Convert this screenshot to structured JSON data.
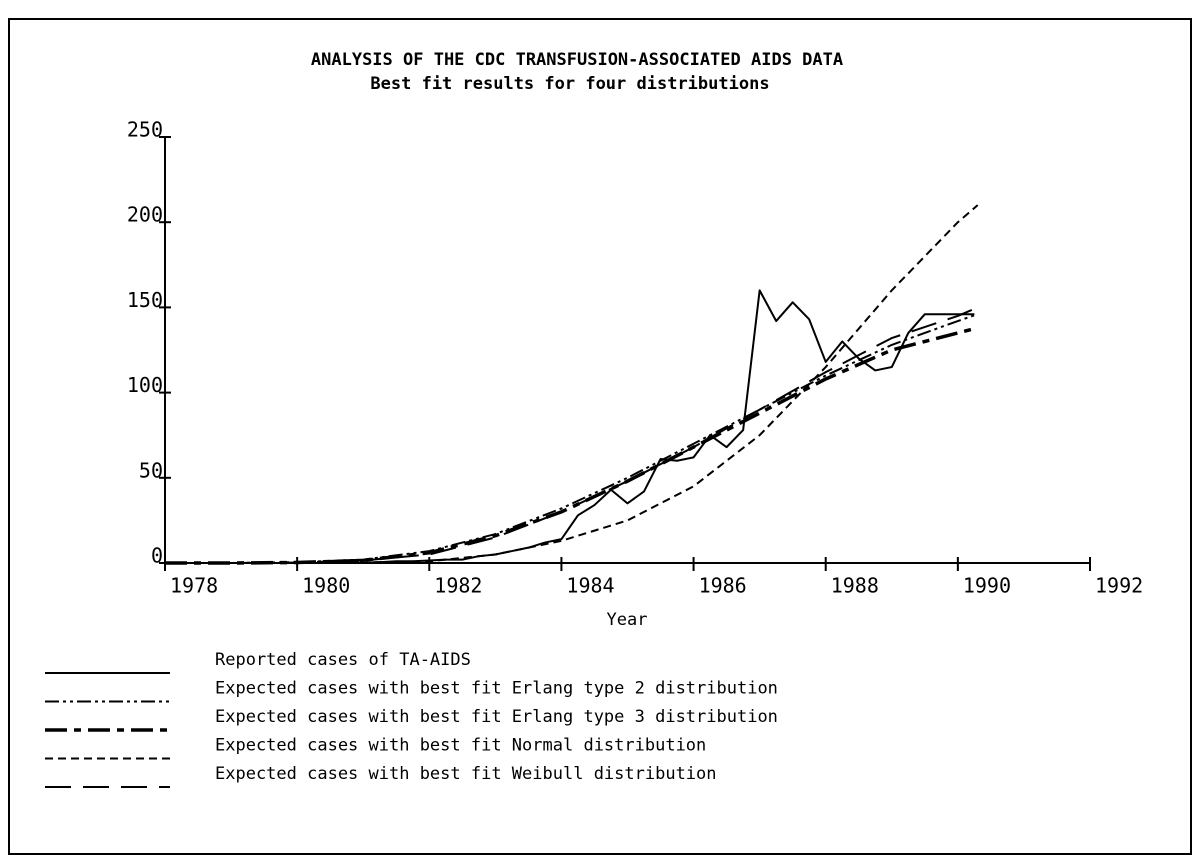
{
  "chart_data": {
    "type": "line",
    "title": "ANALYSIS OF THE CDC TRANSFUSION-ASSOCIATED AIDS DATA",
    "subtitle": "Best fit results for four distributions",
    "x_label": "Year",
    "xlim": [
      1978,
      1992
    ],
    "ylim": [
      0,
      250
    ],
    "xticks": [
      1978,
      1980,
      1982,
      1984,
      1986,
      1988,
      1990,
      1992
    ],
    "yticks": [
      0,
      50,
      100,
      150,
      200,
      250
    ],
    "series": [
      {
        "name": "Reported cases of TA-AIDS",
        "color": "#000000",
        "dash": "none",
        "width": 2,
        "x": [
          1978,
          1981,
          1981.25,
          1981.5,
          1981.75,
          1982,
          1982.25,
          1982.5,
          1982.75,
          1983,
          1983.25,
          1983.5,
          1983.75,
          1984,
          1984.25,
          1984.5,
          1984.75,
          1985,
          1985.25,
          1985.5,
          1985.75,
          1986,
          1986.25,
          1986.5,
          1986.75,
          1987,
          1987.25,
          1987.5,
          1987.75,
          1988,
          1988.25,
          1988.5,
          1988.75,
          1989,
          1989.25,
          1989.5,
          1989.75,
          1990,
          1990.25
        ],
        "values": [
          0,
          0,
          0.5,
          1,
          1,
          1.5,
          2,
          2,
          4,
          5,
          7,
          9,
          12,
          14,
          28,
          34,
          43,
          35,
          42,
          61,
          60,
          62,
          75,
          68,
          78,
          160,
          142,
          153,
          143,
          118,
          130,
          120,
          113,
          115,
          135,
          146,
          146,
          146,
          146
        ]
      },
      {
        "name": "Expected cases with best fit Erlang type 2 distribution",
        "color": "#000000",
        "dash": "14 4 3 4 3 4",
        "width": 2,
        "x": [
          1978,
          1979,
          1980,
          1981,
          1982,
          1983,
          1984,
          1985,
          1986,
          1987,
          1988,
          1989,
          1990,
          1990.3
        ],
        "values": [
          0,
          0,
          0.5,
          2,
          7,
          17,
          32,
          50,
          70,
          90,
          110,
          128,
          142,
          146
        ]
      },
      {
        "name": "Expected cases with best fit Erlang type 3 distribution",
        "color": "#000000",
        "dash": "22 7 7 7",
        "width": 3.5,
        "x": [
          1978,
          1979,
          1980,
          1981,
          1982,
          1983,
          1984,
          1985,
          1986,
          1987,
          1988,
          1989,
          1990,
          1990.3
        ],
        "values": [
          0,
          0,
          0.3,
          1.5,
          6,
          16,
          30,
          48,
          68,
          88,
          108,
          125,
          135,
          138
        ]
      },
      {
        "name": "Expected cases with best fit Normal distribution",
        "color": "#000000",
        "dash": "8 5",
        "width": 2,
        "x": [
          1978,
          1980,
          1981,
          1982,
          1983,
          1984,
          1985,
          1986,
          1987,
          1988,
          1989,
          1990,
          1990.3
        ],
        "values": [
          0,
          0,
          0.3,
          1,
          5,
          13,
          25,
          45,
          75,
          115,
          160,
          200,
          210
        ]
      },
      {
        "name": "Expected cases with best fit Weibull distribution",
        "color": "#000000",
        "dash": "26 12",
        "width": 2,
        "x": [
          1978,
          1979,
          1980,
          1981,
          1982,
          1983,
          1984,
          1985,
          1986,
          1987,
          1988,
          1989,
          1990,
          1990.3
        ],
        "values": [
          0,
          0,
          0.3,
          1.5,
          5,
          15,
          30,
          48,
          68,
          90,
          112,
          132,
          145,
          150
        ]
      }
    ]
  }
}
